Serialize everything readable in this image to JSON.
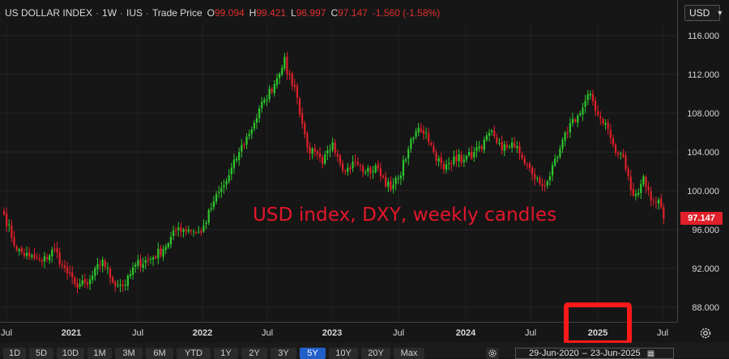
{
  "header": {
    "symbol": "US DOLLAR INDEX",
    "interval": "1W",
    "exchange": "IUS",
    "price_type": "Trade Price",
    "open_label": "O",
    "open": "99.094",
    "high_label": "H",
    "high": "99.421",
    "low_label": "L",
    "low": "96.997",
    "close_label": "C",
    "close": "97.147",
    "change": "-1.560 (-1.58%)"
  },
  "currency_select": {
    "value": "USD"
  },
  "annotation": "USD index, DXY, weekly candles",
  "price_tag": "97.147",
  "colors": {
    "up": "#2ec82e",
    "down": "#e0202a",
    "background": "#161616",
    "highlight_box": "#ff1a1a"
  },
  "highlighted_tick": "2025",
  "ranges": [
    "1D",
    "5D",
    "10D",
    "1M",
    "3M",
    "6M",
    "YTD",
    "1Y",
    "2Y",
    "3Y",
    "5Y",
    "10Y",
    "20Y",
    "Max"
  ],
  "active_range": "5Y",
  "date_range": {
    "from": "29-Jun-2020",
    "to": "23-Jun-2025"
  },
  "chart_data": {
    "type": "candlestick",
    "interval": "weekly",
    "y_ticks": [
      "88.000",
      "92.000",
      "96.000",
      "100.000",
      "104.000",
      "108.000",
      "112.000",
      "116.000"
    ],
    "x_ticks": [
      "Jul",
      "2021",
      "Jul",
      "2022",
      "Jul",
      "2023",
      "Jul",
      "2024",
      "Jul",
      "2025",
      "Jul"
    ],
    "ylim": [
      86,
      117.5
    ],
    "last_close": 97.147,
    "anchors": [
      [
        0,
        97.6
      ],
      [
        5,
        93.9
      ],
      [
        10,
        93.2
      ],
      [
        15,
        92.7
      ],
      [
        20,
        94.0
      ],
      [
        23,
        92.3
      ],
      [
        28,
        90.4
      ],
      [
        33,
        90.3
      ],
      [
        39,
        92.9
      ],
      [
        43,
        90.6
      ],
      [
        48,
        90.3
      ],
      [
        52,
        92.4
      ],
      [
        58,
        93.0
      ],
      [
        63,
        94.0
      ],
      [
        69,
        96.2
      ],
      [
        73,
        96.0
      ],
      [
        78,
        95.7
      ],
      [
        83,
        98.9
      ],
      [
        88,
        101.0
      ],
      [
        93,
        104.0
      ],
      [
        99,
        107.0
      ],
      [
        103,
        109.4
      ],
      [
        107,
        111.0
      ],
      [
        111,
        113.8
      ],
      [
        112,
        112.0
      ],
      [
        115,
        110.7
      ],
      [
        120,
        104.5
      ],
      [
        126,
        102.8
      ],
      [
        130,
        105.0
      ],
      [
        135,
        102.0
      ],
      [
        139,
        103.0
      ],
      [
        143,
        101.9
      ],
      [
        148,
        102.3
      ],
      [
        153,
        100.1
      ],
      [
        156,
        101.3
      ],
      [
        160,
        104.3
      ],
      [
        164,
        106.5
      ],
      [
        167,
        106.0
      ],
      [
        170,
        104.0
      ],
      [
        174,
        102.2
      ],
      [
        178,
        103.5
      ],
      [
        182,
        103.2
      ],
      [
        186,
        104.0
      ],
      [
        189,
        104.3
      ],
      [
        193,
        106.2
      ],
      [
        197,
        104.2
      ],
      [
        201,
        105.0
      ],
      [
        205,
        103.4
      ],
      [
        209,
        101.7
      ],
      [
        213,
        100.5
      ],
      [
        216,
        101.5
      ],
      [
        219,
        103.5
      ],
      [
        224,
        107.0
      ],
      [
        228,
        108.0
      ],
      [
        232,
        110.0
      ],
      [
        235,
        107.8
      ],
      [
        238,
        107.0
      ],
      [
        242,
        103.9
      ],
      [
        245,
        103.5
      ],
      [
        248,
        100.1
      ],
      [
        251,
        99.8
      ],
      [
        253,
        101.5
      ],
      [
        256,
        99.0
      ],
      [
        259,
        99.1
      ],
      [
        261,
        97.2
      ]
    ]
  }
}
